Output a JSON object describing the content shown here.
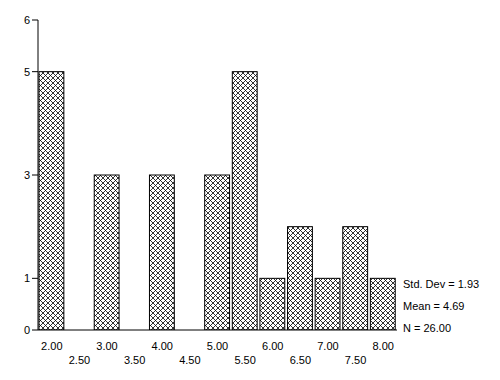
{
  "chart_data": {
    "type": "histogram",
    "bins": [
      1.75,
      2.25,
      2.75,
      3.25,
      3.75,
      4.25,
      4.75,
      5.25,
      5.75,
      6.25,
      6.75,
      7.25,
      7.75,
      8.25
    ],
    "counts": [
      5,
      0,
      3,
      0,
      3,
      0,
      3,
      5,
      1,
      2,
      1,
      2,
      1
    ],
    "color": "#000000",
    "xlim": [
      1.75,
      8.25
    ],
    "xticks": [
      {
        "value": 2,
        "label": "2.00"
      },
      {
        "value": 2.5,
        "label": "2.50"
      },
      {
        "value": 3,
        "label": "3.00"
      },
      {
        "value": 3.5,
        "label": "3.50"
      },
      {
        "value": 4,
        "label": "4.00"
      },
      {
        "value": 4.5,
        "label": "4.50"
      },
      {
        "value": 5,
        "label": "5.00"
      },
      {
        "value": 5.5,
        "label": "5.50"
      },
      {
        "value": 6,
        "label": "6.00"
      },
      {
        "value": 6.5,
        "label": "6.50"
      },
      {
        "value": 7,
        "label": "7.00"
      },
      {
        "value": 7.5,
        "label": "7.50"
      },
      {
        "value": 8,
        "label": "8.00"
      }
    ],
    "ylim": [
      0,
      6
    ],
    "yticks": [
      0,
      1,
      3,
      5,
      6
    ],
    "annotations": [
      "Std. Dev = 1.93",
      "Mean = 4.69",
      "N = 26.00"
    ]
  }
}
